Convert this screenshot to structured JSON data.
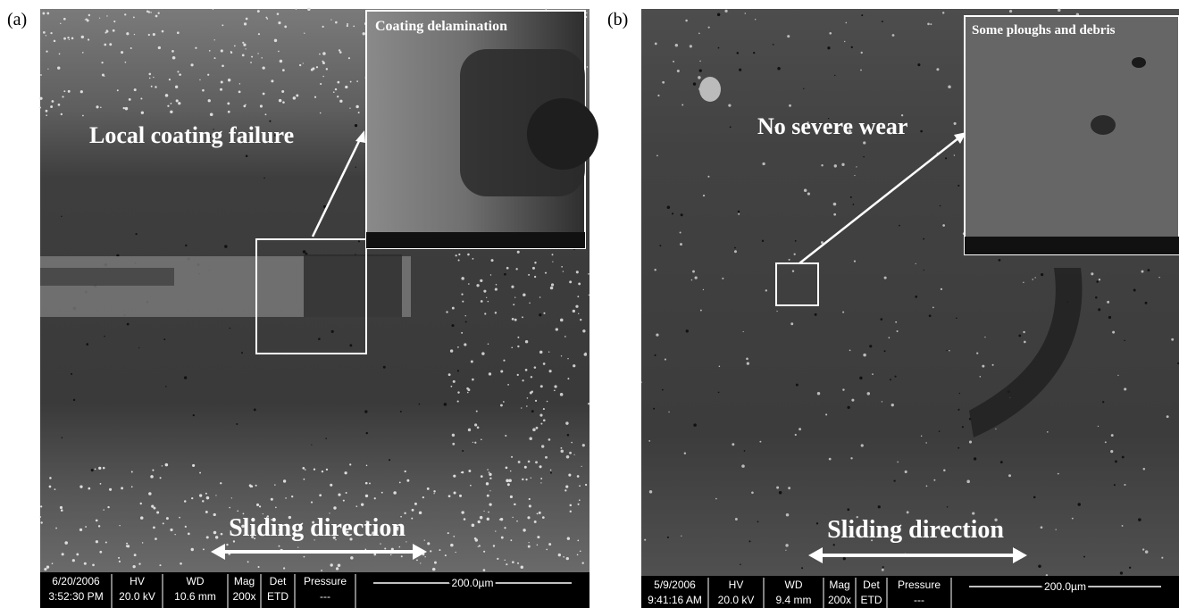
{
  "panels": [
    {
      "label": "(a)",
      "annotation": "Local coating failure",
      "inset_title": "Coating delamination",
      "direction": "Sliding direction",
      "info_bar": [
        [
          "6/20/2006",
          "3:52:30 PM"
        ],
        [
          "HV",
          "20.0 kV"
        ],
        [
          "WD",
          "10.6 mm"
        ],
        [
          "Mag",
          "200x"
        ],
        [
          "Det",
          "ETD"
        ],
        [
          "Pressure",
          "---"
        ]
      ],
      "scale": "200.0µm"
    },
    {
      "label": "(b)",
      "annotation": "No severe wear",
      "inset_title": "Some ploughs and debris",
      "direction": "Sliding direction",
      "info_bar": [
        [
          "5/9/2006",
          "9:41:16 AM"
        ],
        [
          "HV",
          "20.0 kV"
        ],
        [
          "WD",
          "9.4 mm"
        ],
        [
          "Mag",
          "200x"
        ],
        [
          "Det",
          "ETD"
        ],
        [
          "Pressure",
          "---"
        ]
      ],
      "scale": "200.0µm"
    }
  ]
}
